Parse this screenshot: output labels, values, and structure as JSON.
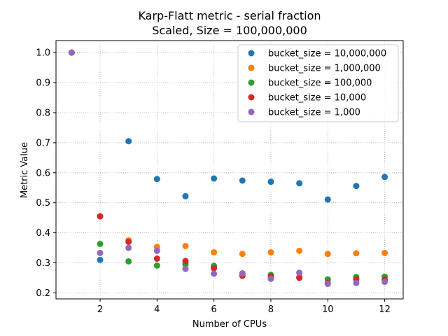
{
  "chart_data": {
    "type": "scatter",
    "title": "Karp-Flatt metric - serial fraction",
    "subtitle": "Scaled, Size = 100,000,000",
    "xlabel": "Number of CPUs",
    "ylabel": "Metric Value",
    "xlim": [
      0.45,
      12.65
    ],
    "ylim": [
      0.18,
      1.04
    ],
    "x_ticks": [
      2,
      4,
      6,
      8,
      10,
      12
    ],
    "y_ticks": [
      0.2,
      0.3,
      0.4,
      0.5,
      0.6,
      0.7,
      0.8,
      0.9,
      1.0
    ],
    "grid": true,
    "legend_position": "top-right",
    "x": [
      1,
      2,
      3,
      4,
      5,
      6,
      7,
      8,
      9,
      10,
      11,
      12
    ],
    "series": [
      {
        "name": "bucket_size = 10,000,000",
        "color": "#1f77b4",
        "values": [
          1.0,
          0.31,
          0.705,
          0.579,
          0.522,
          0.581,
          0.574,
          0.57,
          0.565,
          0.511,
          0.556,
          0.586
        ]
      },
      {
        "name": "bucket_size = 1,000,000",
        "color": "#ff7f0e",
        "values": [
          1.0,
          0.455,
          0.375,
          0.353,
          0.356,
          0.335,
          0.33,
          0.335,
          0.34,
          0.33,
          0.332,
          0.333
        ]
      },
      {
        "name": "bucket_size = 100,000",
        "color": "#2ca02c",
        "values": [
          1.0,
          0.363,
          0.305,
          0.291,
          0.295,
          0.29,
          0.264,
          0.26,
          0.252,
          0.245,
          0.253,
          0.254
        ]
      },
      {
        "name": "bucket_size = 10,000",
        "color": "#d62728",
        "values": [
          1.0,
          0.455,
          0.37,
          0.314,
          0.306,
          0.282,
          0.257,
          0.255,
          0.25,
          0.233,
          0.245,
          0.244
        ]
      },
      {
        "name": "bucket_size = 1,000",
        "color": "#9467bd",
        "values": [
          1.0,
          0.333,
          0.35,
          0.34,
          0.28,
          0.264,
          0.265,
          0.247,
          0.267,
          0.23,
          0.233,
          0.237
        ]
      }
    ]
  }
}
